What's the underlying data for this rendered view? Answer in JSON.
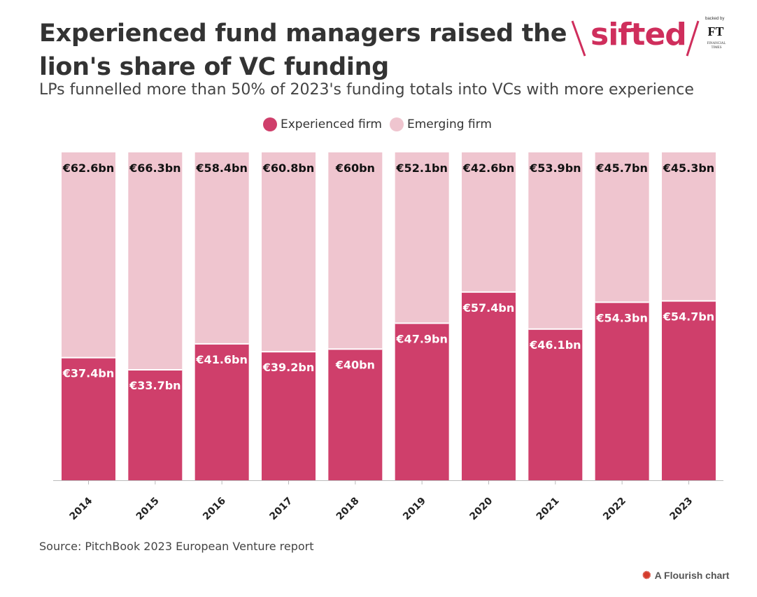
{
  "header": {
    "title": "Experienced fund managers raised the lion's share of VC funding",
    "subtitle": "LPs funnelled more than 50% of 2023's funding totals into VCs with more experience"
  },
  "logo": {
    "brand": "sifted",
    "backed_by": "backed by",
    "ft": "FT",
    "ft_sub": "FINANCIAL TIMES"
  },
  "legend": {
    "items": [
      "Experienced firm",
      "Emerging firm"
    ]
  },
  "colors": {
    "experienced": "#cf3f6b",
    "emerging": "#efc5cf",
    "brand": "#cf2e5c"
  },
  "footer": {
    "source": "Source: PitchBook 2023 European Venture report",
    "credit": "A Flourish chart"
  },
  "chart_data": {
    "type": "bar",
    "stacked": true,
    "percent_stacked": true,
    "categories": [
      "2014",
      "2015",
      "2016",
      "2017",
      "2018",
      "2019",
      "2020",
      "2021",
      "2022",
      "2023"
    ],
    "series": [
      {
        "name": "Experienced firm",
        "values": [
          37.4,
          33.7,
          41.6,
          39.2,
          40,
          47.9,
          57.4,
          46.1,
          54.3,
          54.7
        ],
        "labels": [
          "€37.4bn",
          "€33.7bn",
          "€41.6bn",
          "€39.2bn",
          "€40bn",
          "€47.9bn",
          "€57.4bn",
          "€46.1bn",
          "€54.3bn",
          "€54.7bn"
        ]
      },
      {
        "name": "Emerging firm",
        "values": [
          62.6,
          66.3,
          58.4,
          60.8,
          60,
          52.1,
          42.6,
          53.9,
          45.7,
          45.3
        ],
        "labels": [
          "€62.6bn",
          "€66.3bn",
          "€58.4bn",
          "€60.8bn",
          "€60bn",
          "€52.1bn",
          "€42.6bn",
          "€53.9bn",
          "€45.7bn",
          "€45.3bn"
        ]
      }
    ],
    "ylim": [
      0,
      100
    ],
    "grid": false,
    "legend_position": "top-center"
  }
}
